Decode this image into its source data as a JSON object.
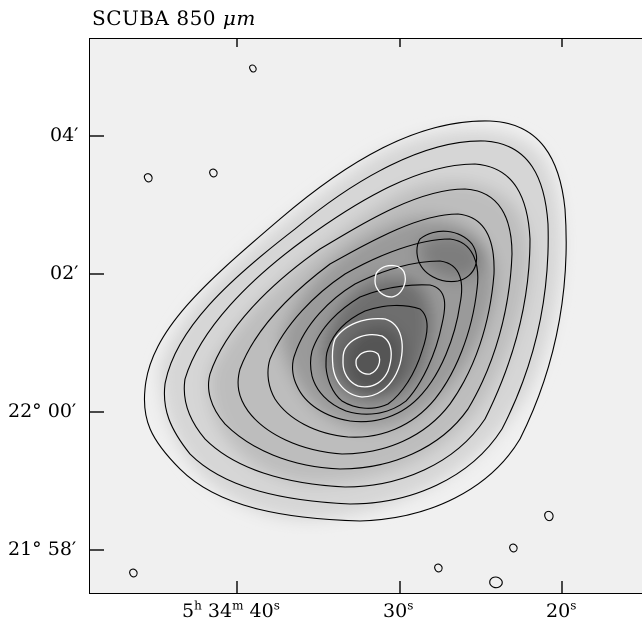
{
  "title": {
    "text": "SCUBA 850",
    "unit": "μm"
  },
  "axes": {
    "y_ticks": [
      {
        "deg": "",
        "min": "04′"
      },
      {
        "deg": "",
        "min": "02′"
      },
      {
        "deg": "22°",
        "min": "00′"
      },
      {
        "deg": "21°",
        "min": "58′"
      }
    ],
    "x_ticks": [
      {
        "h": "5",
        "m": "34",
        "s": "40"
      },
      {
        "s": "30"
      },
      {
        "s": "20"
      }
    ],
    "units": {
      "h": "h",
      "m": "m",
      "s": "s"
    }
  },
  "image": {
    "description_free": true,
    "colormap": "grayscale",
    "contour_levels": 14
  }
}
